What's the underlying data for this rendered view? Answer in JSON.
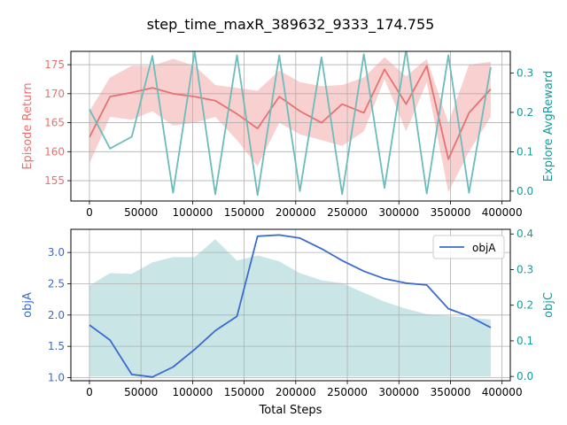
{
  "figure": {
    "title": "step_time_maxR_389632_9333_174.755",
    "xlabel": "Total Steps"
  },
  "colors": {
    "return_line": "#e87171",
    "return_band": "#f8c8c8",
    "explore_line": "#6cbcbc",
    "objA_line": "#3a6bd1",
    "objC_fill": "#b7dcdc",
    "left_axis_top": "#e87171",
    "right_axis_top": "#1a9a9a",
    "left_axis_bottom": "#3a6bd1",
    "right_axis_bottom": "#1a9a9a"
  },
  "chart_data": [
    {
      "type": "line",
      "panel": "top",
      "ylabel": "Episode Return",
      "y2label": "Explore AvgReward",
      "xlim": [
        -18000,
        408000
      ],
      "ylim": [
        151.5,
        177.3
      ],
      "y2lim": [
        -0.025,
        0.355
      ],
      "x_ticks": [
        0,
        50000,
        100000,
        150000,
        200000,
        250000,
        300000,
        350000,
        400000
      ],
      "y_ticks": [
        155,
        160,
        165,
        170,
        175
      ],
      "y2_ticks": [
        0.0,
        0.1,
        0.2,
        0.3
      ],
      "grid": true,
      "series": [
        {
          "name": "",
          "axis": "left",
          "kind": "line_with_band",
          "x": [
            0,
            20000,
            41000,
            61000,
            81000,
            102000,
            122000,
            143000,
            163000,
            184000,
            204000,
            225000,
            245000,
            266000,
            286000,
            307000,
            327000,
            348000,
            368000,
            389000
          ],
          "y": [
            162.5,
            169.5,
            170.2,
            171.0,
            170.0,
            169.5,
            168.8,
            166.5,
            164.0,
            169.5,
            167.0,
            165.0,
            168.2,
            166.7,
            174.2,
            168.2,
            174.8,
            158.7,
            166.7,
            170.8
          ],
          "upper": [
            167.0,
            172.8,
            174.8,
            174.8,
            176.0,
            174.8,
            171.5,
            171.0,
            170.5,
            174.0,
            172.0,
            171.3,
            171.5,
            172.8,
            176.3,
            173.0,
            176.0,
            165.0,
            175.0,
            175.5
          ],
          "lower": [
            158.0,
            166.0,
            165.5,
            167.0,
            164.5,
            165.0,
            166.0,
            162.0,
            157.5,
            165.0,
            163.0,
            162.0,
            161.0,
            163.5,
            172.5,
            163.5,
            172.0,
            153.0,
            160.0,
            166.0
          ]
        },
        {
          "name": "",
          "axis": "right",
          "kind": "line",
          "x": [
            0,
            20000,
            41000,
            61000,
            81000,
            102000,
            122000,
            143000,
            163000,
            184000,
            204000,
            225000,
            245000,
            266000,
            286000,
            307000,
            327000,
            348000,
            368000,
            389000
          ],
          "y": [
            0.208,
            0.108,
            0.138,
            0.343,
            -0.004,
            0.355,
            -0.008,
            0.345,
            -0.01,
            0.345,
            0.0,
            0.34,
            -0.008,
            0.348,
            0.008,
            0.36,
            -0.006,
            0.345,
            -0.004,
            0.315
          ]
        }
      ]
    },
    {
      "type": "line",
      "panel": "bottom",
      "ylabel": "objA",
      "y2label": "objC",
      "xlabel": "Total Steps",
      "xlim": [
        -18000,
        408000
      ],
      "ylim": [
        0.95,
        3.37
      ],
      "y2lim": [
        -0.012,
        0.413
      ],
      "x_ticks": [
        0,
        50000,
        100000,
        150000,
        200000,
        250000,
        300000,
        350000,
        400000
      ],
      "y_ticks": [
        1.0,
        1.5,
        2.0,
        2.5,
        3.0
      ],
      "y2_ticks": [
        0.0,
        0.1,
        0.2,
        0.3,
        0.4
      ],
      "grid": true,
      "legend": {
        "placement": "upper right",
        "entries": [
          "objA"
        ]
      },
      "series": [
        {
          "name": "objA",
          "axis": "left",
          "kind": "line",
          "x": [
            0,
            20000,
            41000,
            61000,
            81000,
            102000,
            122000,
            143000,
            163000,
            184000,
            204000,
            225000,
            245000,
            266000,
            286000,
            307000,
            327000,
            348000,
            368000,
            389000
          ],
          "y": [
            1.84,
            1.6,
            1.05,
            1.01,
            1.17,
            1.45,
            1.75,
            1.98,
            3.26,
            3.28,
            3.23,
            3.06,
            2.87,
            2.7,
            2.58,
            2.51,
            2.48,
            2.1,
            1.98,
            1.8
          ]
        },
        {
          "name": "",
          "axis": "right",
          "kind": "area",
          "x": [
            0,
            20000,
            41000,
            61000,
            81000,
            102000,
            122000,
            143000,
            163000,
            184000,
            204000,
            225000,
            245000,
            266000,
            286000,
            307000,
            327000,
            348000,
            368000,
            389000
          ],
          "y": [
            0.255,
            0.29,
            0.288,
            0.32,
            0.335,
            0.335,
            0.385,
            0.325,
            0.34,
            0.323,
            0.29,
            0.27,
            0.262,
            0.235,
            0.21,
            0.19,
            0.175,
            0.17,
            0.165,
            0.16
          ]
        }
      ]
    }
  ]
}
